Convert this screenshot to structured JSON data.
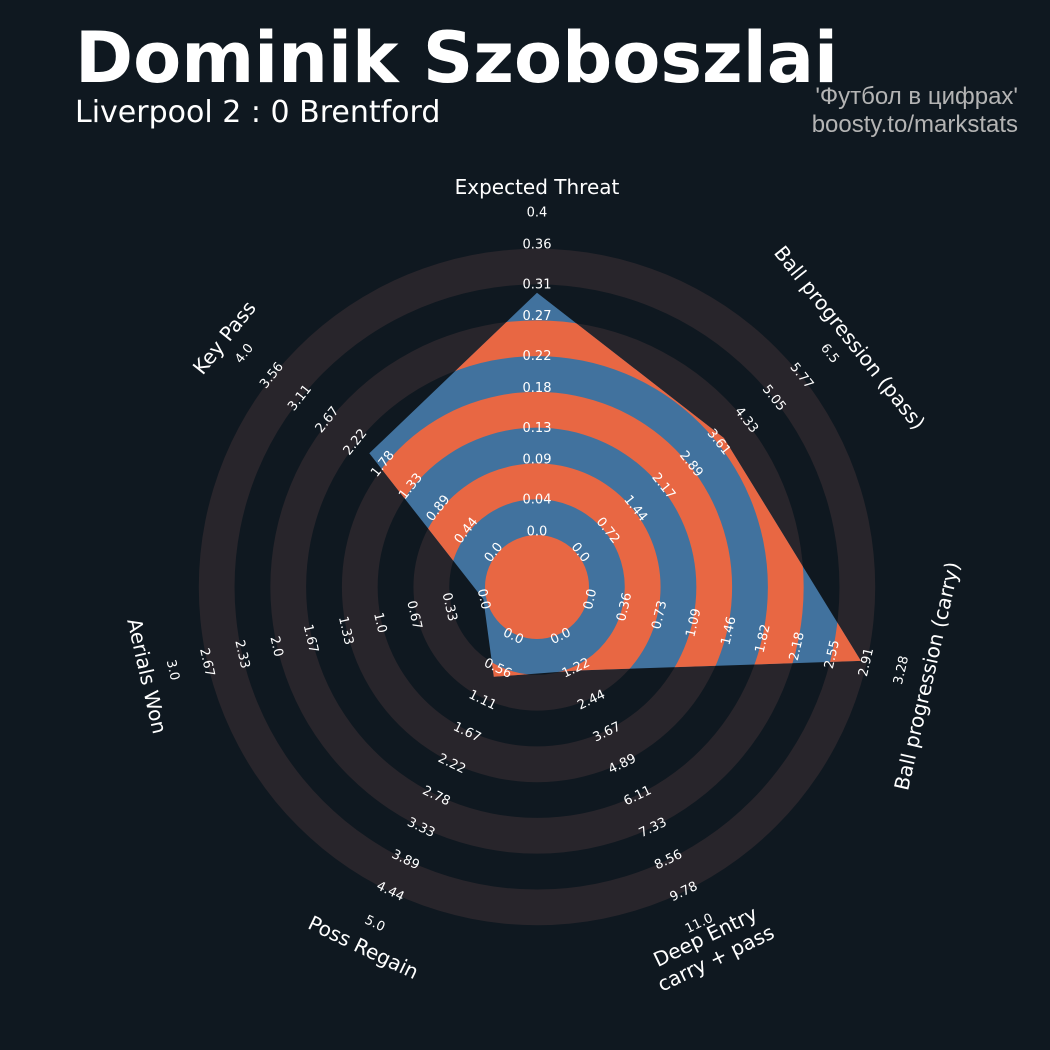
{
  "chart_data": {
    "type": "radar",
    "title": "Dominik Szoboszlai",
    "subtitle": "Liverpool 2 : 0 Brentford",
    "credits": [
      "'Футбол в цифрах'",
      "boosty.to/markstats"
    ],
    "axes": [
      {
        "label": [
          "Expected Threat"
        ],
        "lim": [
          0,
          0.4
        ],
        "ticks": [
          {
            "value": 0,
            "label": "0.0"
          },
          0.04,
          0.09,
          0.13,
          0.18,
          0.22,
          0.27,
          0.31,
          0.36,
          0.4
        ]
      },
      {
        "label": [
          "Ball progression (pass)"
        ],
        "lim": [
          0,
          6.5
        ],
        "ticks": [
          {
            "value": 0,
            "label": "0.0"
          },
          0.72,
          1.44,
          2.17,
          2.89,
          3.61,
          4.33,
          5.05,
          5.77,
          6.5
        ]
      },
      {
        "label": [
          "Ball progression (carry)"
        ],
        "lim": [
          0,
          3.28
        ],
        "ticks": [
          {
            "value": 0,
            "label": "0.0"
          },
          0.36,
          0.73,
          1.09,
          1.46,
          1.82,
          2.18,
          2.55,
          2.91,
          3.28
        ]
      },
      {
        "label": [
          "Deep Entry",
          "carry + pass"
        ],
        "lim": [
          0,
          11
        ],
        "ticks": [
          {
            "value": 0,
            "label": "0.0"
          },
          1.22,
          2.44,
          3.67,
          4.89,
          6.11,
          7.33,
          8.56,
          9.78,
          {
            "value": 11,
            "label": "11.0"
          }
        ]
      },
      {
        "label": [
          "Poss Regain"
        ],
        "lim": [
          0,
          5
        ],
        "ticks": [
          {
            "value": 0,
            "label": "0.0"
          },
          0.56,
          1.11,
          1.67,
          2.22,
          2.78,
          3.33,
          3.89,
          4.44,
          {
            "value": 5,
            "label": "5.0"
          }
        ]
      },
      {
        "label": [
          "Aerials Won"
        ],
        "lim": [
          0,
          3
        ],
        "ticks": [
          {
            "value": 0,
            "label": "0.0"
          },
          0.33,
          0.67,
          {
            "value": 1,
            "label": "1.0"
          },
          1.33,
          1.67,
          {
            "value": 2,
            "label": "2.0"
          },
          2.33,
          2.67,
          {
            "value": 3,
            "label": "3.0"
          }
        ]
      },
      {
        "label": [
          "Key Pass"
        ],
        "lim": [
          0,
          4
        ],
        "ticks": [
          {
            "value": 0,
            "label": "0.0"
          },
          0.44,
          0.89,
          1.33,
          1.78,
          2.22,
          2.67,
          3.11,
          3.56,
          {
            "value": 4,
            "label": "4.0"
          }
        ]
      }
    ],
    "values": [
      0.3,
      3.75,
      2.85,
      1.3,
      0.7,
      0,
      2.0
    ],
    "colors": {
      "polygon": "#41729e",
      "rings": "#e86743",
      "ring_background": "#28252b",
      "background": "#0f1820"
    }
  }
}
